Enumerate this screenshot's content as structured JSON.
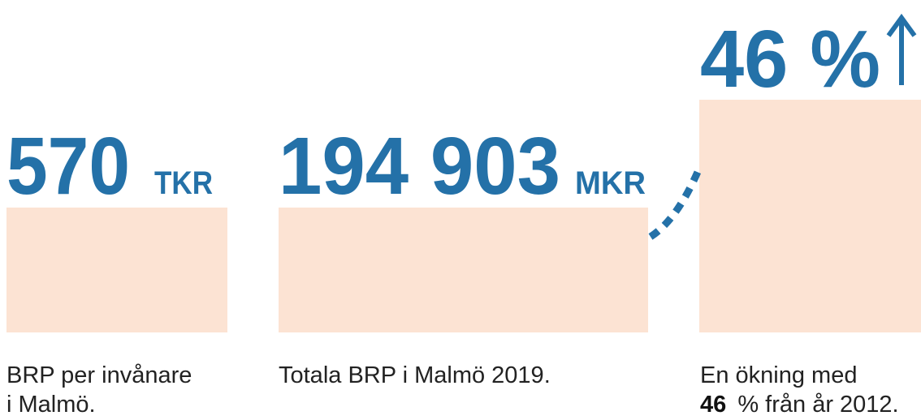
{
  "items": [
    {
      "value": "570",
      "unit": "TKR",
      "caption": [
        "BRP per invånare",
        "i Malmö."
      ]
    },
    {
      "value": "194 903",
      "unit": "MKR",
      "caption": [
        "Totala BRP i Malmö 2019."
      ]
    },
    {
      "value": "46 %",
      "caption": [
        "En ökning med"
      ],
      "caption_bold": "46",
      "caption_rest": "% från år 2012."
    }
  ]
}
